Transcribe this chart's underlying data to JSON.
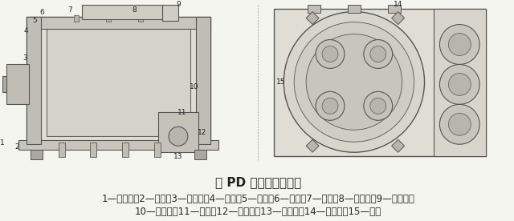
{
  "background_color": "#f5f5f0",
  "title": "图 PD 系列离心机结构",
  "title_fontsize": 11,
  "title_bold": true,
  "caption_line1": "1—减震器；2—平台；3—轴承座；4—外壳；5—筛篮；6—壳盖；7—吊盘；8—清洗管；9—加料管；",
  "caption_line2": "10—弹簧缸；11—电机；12—皮带轮；13—三角带；14—观察灯；15—视镜",
  "caption_fontsize": 8.5,
  "image_bg": "#e8e8e0",
  "text_color": "#222222",
  "border_color": "#aaaaaa"
}
